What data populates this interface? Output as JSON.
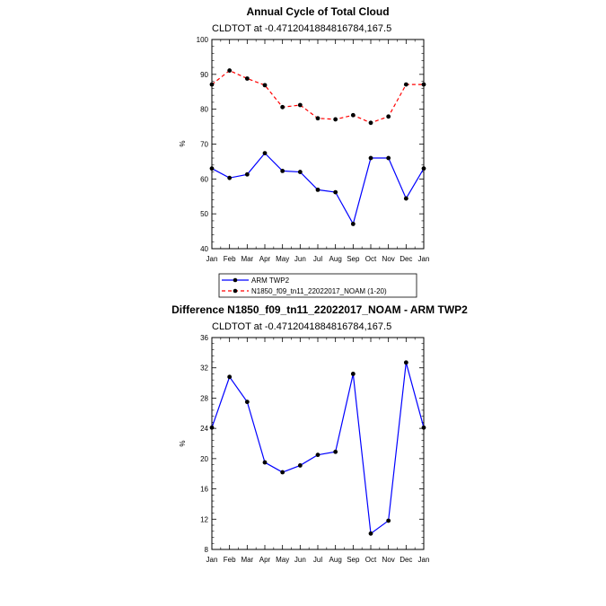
{
  "chart_data": [
    {
      "type": "line",
      "title": "Annual Cycle of Total Cloud",
      "subtitle": "CLDTOT at -0.4712041884816784,167.5",
      "xlabel": "",
      "ylabel": "%",
      "categories": [
        "Jan",
        "Feb",
        "Mar",
        "Apr",
        "May",
        "Jun",
        "Jul",
        "Aug",
        "Sep",
        "Oct",
        "Nov",
        "Dec",
        "Jan"
      ],
      "ylim": [
        40,
        100
      ],
      "yticks": [
        40,
        50,
        60,
        70,
        80,
        90,
        100
      ],
      "series": [
        {
          "name": "ARM TWP2",
          "color": "#0000ff",
          "style": "solid",
          "values": [
            63.0,
            60.3,
            61.3,
            67.4,
            62.3,
            62.0,
            56.9,
            56.2,
            47.1,
            66.0,
            66.0,
            54.4,
            63.0
          ]
        },
        {
          "name": "N1850_f09_tn11_22022017_NOAM (1-20)",
          "color": "#ff0000",
          "style": "dashed",
          "values": [
            87.1,
            91.1,
            88.8,
            86.9,
            80.6,
            81.2,
            77.4,
            77.1,
            78.3,
            76.1,
            77.9,
            87.1,
            87.1
          ]
        }
      ],
      "legend": "below"
    },
    {
      "type": "line",
      "title": "Difference N1850_f09_tn11_22022017_NOAM - ARM TWP2",
      "subtitle": "CLDTOT at -0.4712041884816784,167.5",
      "xlabel": "",
      "ylabel": "%",
      "categories": [
        "Jan",
        "Feb",
        "Mar",
        "Apr",
        "May",
        "Jun",
        "Jul",
        "Aug",
        "Sep",
        "Oct",
        "Nov",
        "Dec",
        "Jan"
      ],
      "ylim": [
        8,
        36
      ],
      "yticks": [
        8,
        12,
        16,
        20,
        24,
        28,
        32,
        36
      ],
      "series": [
        {
          "color": "#0000ff",
          "style": "solid",
          "values": [
            24.1,
            30.8,
            27.5,
            19.5,
            18.2,
            19.1,
            20.5,
            20.9,
            31.2,
            10.1,
            11.8,
            32.7,
            24.1
          ]
        }
      ]
    }
  ]
}
